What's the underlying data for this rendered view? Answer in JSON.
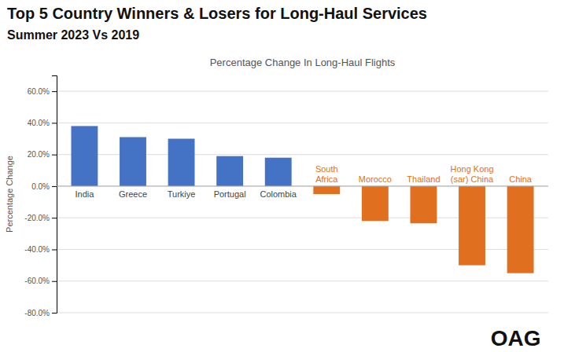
{
  "chart_data": {
    "type": "bar",
    "title": "Top 5 Country Winners & Losers for Long-Haul Services",
    "subtitle": "Summer 2023 Vs 2019",
    "annotations": [
      "Percentage Change In Long-Haul Flights",
      "OAG"
    ],
    "y_label": "Percentage Change",
    "categories": [
      "India",
      "Greece",
      "Turkiye",
      "Portugal",
      "Colombia",
      "South\nAfrica",
      "Morocco",
      "Thailand",
      "Hong Kong\n(sar) China",
      "China"
    ],
    "values": [
      38.0,
      31.0,
      30.0,
      19.0,
      18.0,
      -5.0,
      -22.0,
      -23.5,
      -50.0,
      -55.0
    ],
    "colors": [
      "#4472C4",
      "#4472C4",
      "#4472C4",
      "#4472C4",
      "#4472C4",
      "#E07020",
      "#E07020",
      "#E07020",
      "#E07020",
      "#E07020"
    ],
    "ylim": [
      -80,
      70
    ],
    "yticks": [
      {
        "value": 60.0,
        "label": "60.0%"
      },
      {
        "value": 40.0,
        "label": "40.0%"
      },
      {
        "value": 20.0,
        "label": "20.0%"
      },
      {
        "value": 0.0,
        "label": "0.0%"
      },
      {
        "value": -20.0,
        "label": "-20.0%"
      },
      {
        "value": -40.0,
        "label": "-40.0%"
      },
      {
        "value": -60.0,
        "label": "-60.0%"
      },
      {
        "value": -80.0,
        "label": "-80.0%"
      }
    ],
    "grid": true
  }
}
